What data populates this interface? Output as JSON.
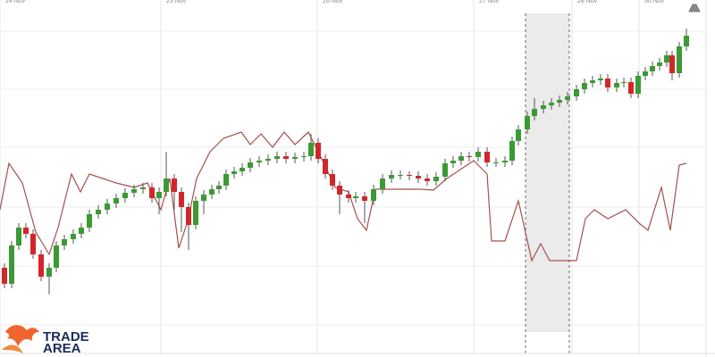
{
  "chart_data": {
    "type": "candlestick",
    "xlim": [
      0,
      800
    ],
    "ylim": [
      0,
      400
    ],
    "xticks": [
      {
        "value": 0,
        "label": "24 Nov"
      },
      {
        "value": 180,
        "label": "25 Nov"
      },
      {
        "value": 355,
        "label": "26 Nov"
      },
      {
        "value": 530,
        "label": "27 Nov"
      },
      {
        "value": 640,
        "label": "28 Nov"
      },
      {
        "value": 715,
        "label": "30 Nov"
      }
    ],
    "yticks": [
      36,
      102,
      168,
      235,
      300,
      365
    ],
    "grid": true,
    "highlight_range": [
      588,
      637
    ],
    "up_color": "#3c9a34",
    "down_color": "#d3262b",
    "wick_color": "#555555",
    "x": [
      5,
      13,
      21,
      29,
      37,
      46,
      55,
      63,
      72,
      82,
      91,
      100,
      110,
      120,
      130,
      140,
      150,
      160,
      170,
      178,
      186,
      195,
      203,
      211,
      219,
      228,
      237,
      245,
      253,
      262,
      271,
      280,
      290,
      300,
      310,
      320,
      330,
      340,
      348,
      356,
      364,
      372,
      380,
      390,
      398,
      408,
      418,
      428,
      438,
      448,
      458,
      468,
      478,
      488,
      498,
      507,
      516,
      525,
      535,
      545,
      555,
      565,
      573,
      580,
      590,
      598,
      608,
      617,
      626,
      635,
      645,
      654,
      663,
      672,
      680,
      690,
      698,
      706,
      714,
      722,
      730,
      738,
      746,
      752,
      760,
      768
    ],
    "open": [
      100,
      82,
      125,
      145,
      138,
      115,
      90,
      100,
      125,
      132,
      138,
      145,
      160,
      165,
      172,
      178,
      184,
      188,
      190,
      178,
      185,
      200,
      185,
      168,
      148,
      175,
      182,
      188,
      192,
      205,
      208,
      212,
      218,
      220,
      222,
      225,
      222,
      224,
      225,
      240,
      222,
      205,
      192,
      182,
      178,
      180,
      175,
      188,
      200,
      204,
      204,
      203,
      200,
      197,
      202,
      217,
      220,
      225,
      224,
      230,
      218,
      218,
      220,
      242,
      255,
      270,
      278,
      282,
      285,
      288,
      292,
      300,
      307,
      310,
      312,
      302,
      307,
      308,
      295,
      315,
      320,
      326,
      330,
      338,
      318,
      348
    ],
    "high": [
      105,
      130,
      150,
      150,
      143,
      120,
      105,
      130,
      137,
      143,
      150,
      165,
      170,
      177,
      183,
      189,
      193,
      195,
      195,
      190,
      230,
      205,
      190,
      173,
      180,
      187,
      193,
      197,
      210,
      213,
      217,
      223,
      225,
      227,
      230,
      230,
      229,
      230,
      250,
      245,
      227,
      210,
      197,
      187,
      185,
      185,
      193,
      205,
      209,
      209,
      208,
      208,
      205,
      207,
      222,
      225,
      230,
      230,
      235,
      235,
      223,
      225,
      247,
      260,
      275,
      290,
      287,
      290,
      293,
      297,
      305,
      312,
      315,
      317,
      317,
      312,
      313,
      313,
      320,
      325,
      331,
      335,
      343,
      343,
      353,
      368
    ],
    "low": [
      77,
      77,
      120,
      133,
      110,
      85,
      70,
      95,
      120,
      127,
      133,
      140,
      155,
      160,
      167,
      173,
      179,
      183,
      173,
      160,
      180,
      165,
      140,
      120,
      143,
      160,
      177,
      183,
      187,
      200,
      203,
      207,
      213,
      215,
      217,
      217,
      217,
      219,
      220,
      217,
      200,
      187,
      160,
      173,
      173,
      150,
      170,
      183,
      195,
      199,
      198,
      195,
      192,
      192,
      197,
      212,
      215,
      219,
      219,
      213,
      213,
      213,
      215,
      237,
      250,
      265,
      273,
      277,
      280,
      283,
      287,
      295,
      302,
      305,
      297,
      297,
      302,
      290,
      290,
      310,
      315,
      321,
      325,
      310,
      313,
      343
    ],
    "close": [
      82,
      125,
      145,
      138,
      115,
      90,
      100,
      125,
      132,
      138,
      145,
      160,
      165,
      172,
      178,
      184,
      188,
      190,
      178,
      185,
      200,
      185,
      168,
      148,
      175,
      182,
      188,
      192,
      205,
      208,
      212,
      218,
      220,
      222,
      225,
      222,
      224,
      225,
      240,
      222,
      205,
      192,
      182,
      178,
      180,
      175,
      188,
      200,
      204,
      204,
      203,
      200,
      197,
      202,
      217,
      220,
      225,
      224,
      230,
      218,
      218,
      220,
      242,
      255,
      270,
      278,
      282,
      285,
      288,
      292,
      300,
      307,
      310,
      312,
      302,
      307,
      308,
      295,
      315,
      320,
      326,
      330,
      338,
      318,
      348,
      360
    ],
    "overlay": {
      "color": "#a4504e",
      "x": [
        0,
        10,
        25,
        40,
        55,
        65,
        80,
        90,
        100,
        115,
        130,
        150,
        165,
        180,
        190,
        200,
        210,
        220,
        235,
        250,
        270,
        280,
        292,
        305,
        318,
        330,
        345,
        360,
        375,
        390,
        400,
        410,
        420,
        440,
        470,
        485,
        500,
        515,
        530,
        545,
        550,
        565,
        580,
        595,
        605,
        615,
        645,
        655,
        665,
        680,
        700,
        715,
        725,
        740,
        750,
        760,
        768
      ],
      "values": [
        165,
        217,
        195,
        140,
        115,
        145,
        205,
        185,
        205,
        200,
        195,
        190,
        195,
        165,
        200,
        122,
        152,
        200,
        230,
        245,
        252,
        238,
        250,
        235,
        252,
        238,
        252,
        222,
        190,
        185,
        155,
        142,
        188,
        188,
        188,
        187,
        200,
        210,
        220,
        205,
        130,
        130,
        175,
        108,
        127,
        108,
        108,
        155,
        165,
        155,
        165,
        150,
        142,
        190,
        142,
        215,
        217
      ]
    }
  },
  "logo": {
    "line1": "TRADE",
    "line2": "AREA"
  }
}
